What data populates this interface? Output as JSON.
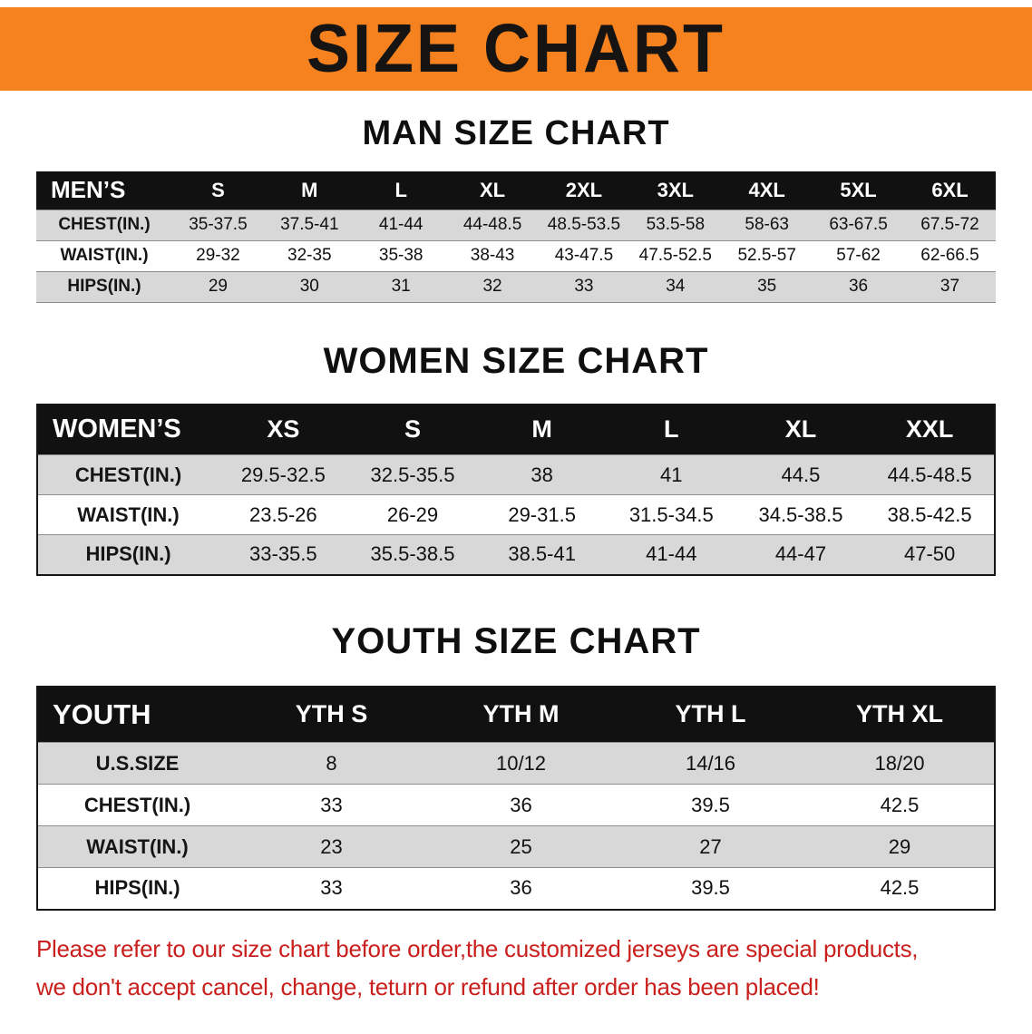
{
  "colors": {
    "banner_orange": "#F5821F",
    "header_black": "#111111",
    "row_gray": "#D8D8D8",
    "disclaimer_red": "#C9201D"
  },
  "banner": {
    "title": "SIZE CHART"
  },
  "sections": [
    {
      "id": "men",
      "heading": "MAN SIZE CHART",
      "table": {
        "corner": "MEN’S",
        "columns": [
          "S",
          "M",
          "L",
          "XL",
          "2XL",
          "3XL",
          "4XL",
          "5XL",
          "6XL"
        ],
        "rows": [
          {
            "label": "CHEST(IN.)",
            "values": [
              "35-37.5",
              "37.5-41",
              "41-44",
              "44-48.5",
              "48.5-53.5",
              "53.5-58",
              "58-63",
              "63-67.5",
              "67.5-72"
            ]
          },
          {
            "label": "WAIST(IN.)",
            "values": [
              "29-32",
              "32-35",
              "35-38",
              "38-43",
              "43-47.5",
              "47.5-52.5",
              "52.5-57",
              "57-62",
              "62-66.5"
            ]
          },
          {
            "label": "HIPS(IN.)",
            "values": [
              "29",
              "30",
              "31",
              "32",
              "33",
              "34",
              "35",
              "36",
              "37"
            ]
          }
        ]
      }
    },
    {
      "id": "women",
      "heading": "WOMEN SIZE CHART",
      "table": {
        "corner": "WOMEN’S",
        "columns": [
          "XS",
          "S",
          "M",
          "L",
          "XL",
          "XXL"
        ],
        "rows": [
          {
            "label": "CHEST(IN.)",
            "values": [
              "29.5-32.5",
              "32.5-35.5",
              "38",
              "41",
              "44.5",
              "44.5-48.5"
            ]
          },
          {
            "label": "WAIST(IN.)",
            "values": [
              "23.5-26",
              "26-29",
              "29-31.5",
              "31.5-34.5",
              "34.5-38.5",
              "38.5-42.5"
            ]
          },
          {
            "label": "HIPS(IN.)",
            "values": [
              "33-35.5",
              "35.5-38.5",
              "38.5-41",
              "41-44",
              "44-47",
              "47-50"
            ]
          }
        ]
      }
    },
    {
      "id": "youth",
      "heading": "YOUTH SIZE CHART",
      "table": {
        "corner": "YOUTH",
        "columns": [
          "YTH S",
          "YTH M",
          "YTH L",
          "YTH XL"
        ],
        "rows": [
          {
            "label": "U.S.SIZE",
            "values": [
              "8",
              "10/12",
              "14/16",
              "18/20"
            ]
          },
          {
            "label": "CHEST(IN.)",
            "values": [
              "33",
              "36",
              "39.5",
              "42.5"
            ]
          },
          {
            "label": "WAIST(IN.)",
            "values": [
              "23",
              "25",
              "27",
              "29"
            ]
          },
          {
            "label": "HIPS(IN.)",
            "values": [
              "33",
              "36",
              "39.5",
              "42.5"
            ]
          }
        ]
      }
    }
  ],
  "footer": {
    "line1": "Please refer to our size chart before order,the customized jerseys are special products,",
    "line2": "we don't accept cancel, change, teturn or refund after order has been placed!"
  }
}
